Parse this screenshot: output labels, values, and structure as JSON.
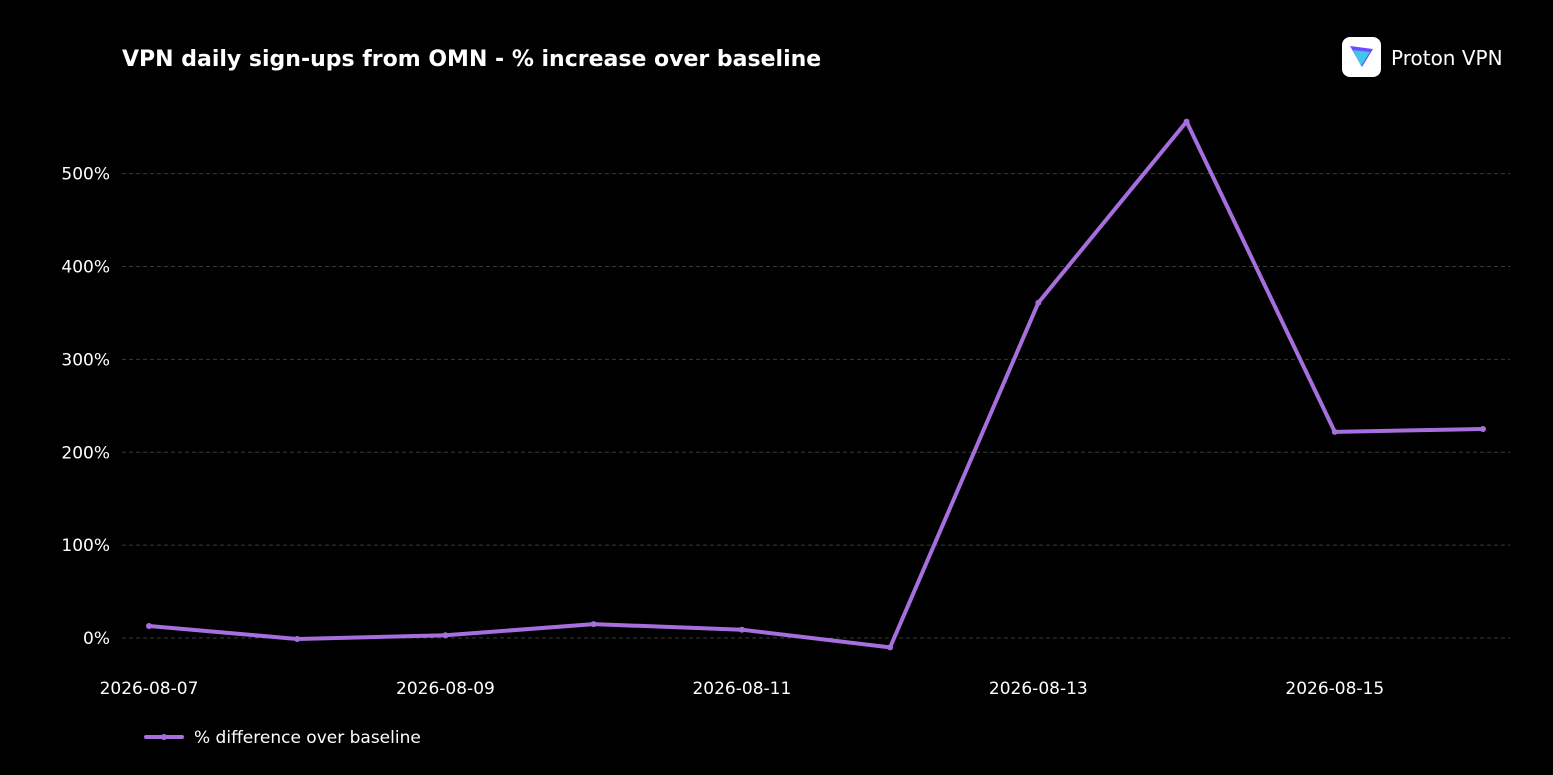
{
  "brand": {
    "logo_text": "Proton VPN",
    "logo_icon": "proton-vpn-logo-icon"
  },
  "chart_data": {
    "type": "line",
    "title": "VPN daily sign-ups from OMN - % increase over baseline",
    "xlabel": "",
    "ylabel": "",
    "x": [
      "2026-08-07",
      "2026-08-08",
      "2026-08-09",
      "2026-08-10",
      "2026-08-11",
      "2026-08-12",
      "2026-08-13",
      "2026-08-14",
      "2026-08-15",
      "2026-08-16"
    ],
    "x_tick_labels": [
      "2026-08-07",
      "2026-08-09",
      "2026-08-11",
      "2026-08-13",
      "2026-08-15"
    ],
    "y_tick_values": [
      0,
      100,
      200,
      300,
      400,
      500
    ],
    "y_tick_labels": [
      "0%",
      "100%",
      "200%",
      "300%",
      "400%",
      "500%"
    ],
    "ylim": [
      -43,
      590
    ],
    "grid": true,
    "legend_position": "bottom-left",
    "series": [
      {
        "name": "% difference over baseline",
        "color": "#a66fdd",
        "values": [
          13,
          -1,
          3,
          15,
          9,
          -10,
          361,
          556,
          222,
          225
        ]
      }
    ]
  }
}
